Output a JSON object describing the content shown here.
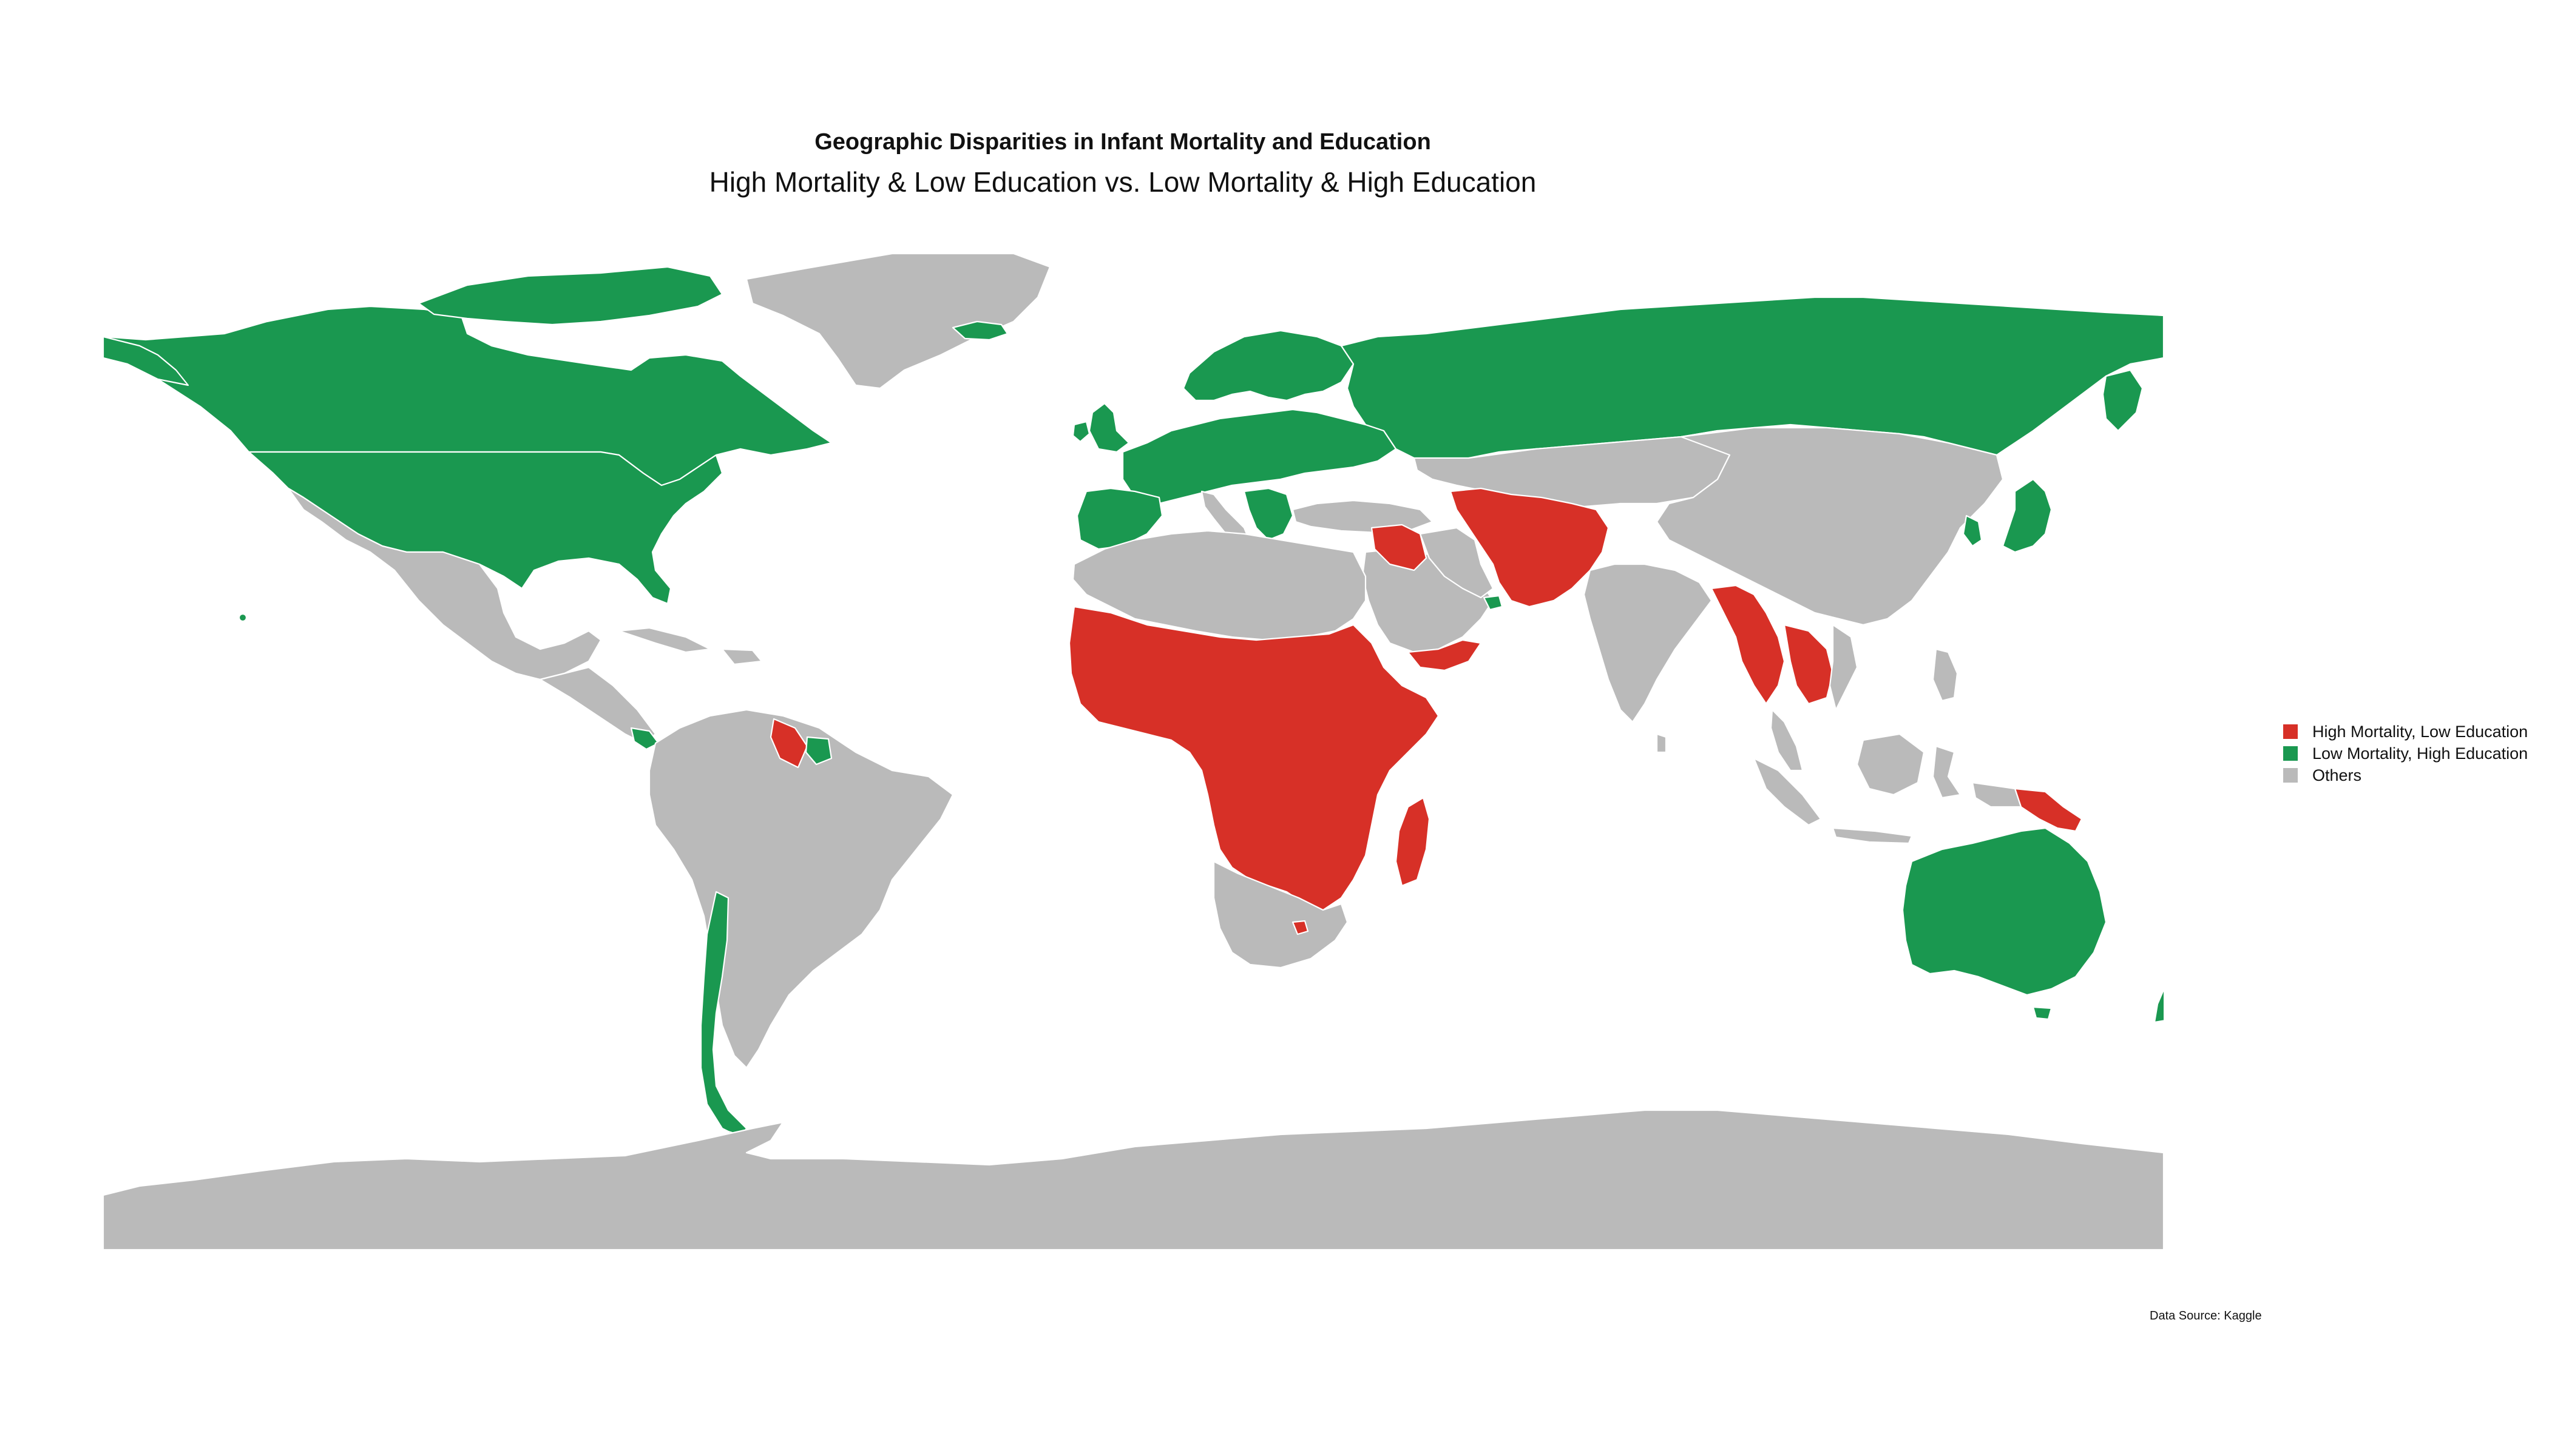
{
  "chart": {
    "title": "Geographic Disparities in Infant Mortality and Education",
    "subtitle": "High Mortality & Low Education vs. Low Mortality & High Education",
    "caption": "Data Source: Kaggle"
  },
  "legend": {
    "items": [
      {
        "label": "High Mortality, Low Education",
        "color": "#d73027"
      },
      {
        "label": "Low Mortality, High Education",
        "color": "#1a9850"
      },
      {
        "label": "Others",
        "color": "#bababa"
      }
    ]
  },
  "chart_data": {
    "type": "choropleth",
    "title": "Geographic Disparities in Infant Mortality and Education",
    "subtitle": "High Mortality & Low Education vs. Low Mortality & High Education",
    "caption": "Data Source: Kaggle",
    "legend_position": "right",
    "categories": [
      "High Mortality, Low Education",
      "Low Mortality, High Education",
      "Others"
    ],
    "colors": {
      "High Mortality, Low Education": "#d73027",
      "Low Mortality, High Education": "#1a9850",
      "Others": "#bababa"
    },
    "regions": [
      {
        "name": "Canada",
        "category": "Low Mortality, High Education"
      },
      {
        "name": "United States",
        "category": "Low Mortality, High Education"
      },
      {
        "name": "Mexico",
        "category": "Others"
      },
      {
        "name": "Costa Rica",
        "category": "Low Mortality, High Education"
      },
      {
        "name": "Guyana",
        "category": "High Mortality, Low Education"
      },
      {
        "name": "Suriname",
        "category": "Low Mortality, High Education"
      },
      {
        "name": "Chile",
        "category": "Low Mortality, High Education"
      },
      {
        "name": "Brazil",
        "category": "Others"
      },
      {
        "name": "Greenland",
        "category": "Others"
      },
      {
        "name": "Russia",
        "category": "Low Mortality, High Education"
      },
      {
        "name": "Norway",
        "category": "Low Mortality, High Education"
      },
      {
        "name": "Sweden",
        "category": "Low Mortality, High Education"
      },
      {
        "name": "Finland",
        "category": "Low Mortality, High Education"
      },
      {
        "name": "United Kingdom",
        "category": "Low Mortality, High Education"
      },
      {
        "name": "Ireland",
        "category": "Low Mortality, High Education"
      },
      {
        "name": "Iceland",
        "category": "Low Mortality, High Education"
      },
      {
        "name": "France",
        "category": "Low Mortality, High Education"
      },
      {
        "name": "Spain",
        "category": "Low Mortality, High Education"
      },
      {
        "name": "Portugal",
        "category": "Low Mortality, High Education"
      },
      {
        "name": "Germany",
        "category": "Low Mortality, High Education"
      },
      {
        "name": "Poland",
        "category": "Low Mortality, High Education"
      },
      {
        "name": "Ukraine",
        "category": "Low Mortality, High Education"
      },
      {
        "name": "Romania",
        "category": "Low Mortality, High Education"
      },
      {
        "name": "Italy",
        "category": "Others"
      },
      {
        "name": "Greece",
        "category": "Low Mortality, High Education"
      },
      {
        "name": "Turkey",
        "category": "Others"
      },
      {
        "name": "Iraq",
        "category": "High Mortality, Low Education"
      },
      {
        "name": "Yemen",
        "category": "High Mortality, Low Education"
      },
      {
        "name": "United Arab Emirates",
        "category": "Low Mortality, High Education"
      },
      {
        "name": "Saudi Arabia",
        "category": "Others"
      },
      {
        "name": "Turkmenistan",
        "category": "High Mortality, Low Education"
      },
      {
        "name": "Afghanistan",
        "category": "High Mortality, Low Education"
      },
      {
        "name": "Pakistan",
        "category": "High Mortality, Low Education"
      },
      {
        "name": "India",
        "category": "Others"
      },
      {
        "name": "Bangladesh",
        "category": "High Mortality, Low Education"
      },
      {
        "name": "Myanmar",
        "category": "High Mortality, Low Education"
      },
      {
        "name": "Laos",
        "category": "High Mortality, Low Education"
      },
      {
        "name": "Cambodia",
        "category": "High Mortality, Low Education"
      },
      {
        "name": "China",
        "category": "Others"
      },
      {
        "name": "Mongolia",
        "category": "Others"
      },
      {
        "name": "Kazakhstan",
        "category": "Others"
      },
      {
        "name": "South Korea",
        "category": "Low Mortality, High Education"
      },
      {
        "name": "Japan",
        "category": "Low Mortality, High Education"
      },
      {
        "name": "Indonesia",
        "category": "Others"
      },
      {
        "name": "Papua New Guinea",
        "category": "High Mortality, Low Education"
      },
      {
        "name": "Australia",
        "category": "Low Mortality, High Education"
      },
      {
        "name": "New Zealand",
        "category": "Low Mortality, High Education"
      },
      {
        "name": "Sub-Saharan Africa",
        "category": "High Mortality, Low Education"
      },
      {
        "name": "Madagascar",
        "category": "High Mortality, Low Education"
      },
      {
        "name": "Lesotho",
        "category": "High Mortality, Low Education"
      },
      {
        "name": "South Africa",
        "category": "Others"
      },
      {
        "name": "North Africa",
        "category": "Others"
      },
      {
        "name": "Antarctica",
        "category": "Others"
      }
    ]
  }
}
